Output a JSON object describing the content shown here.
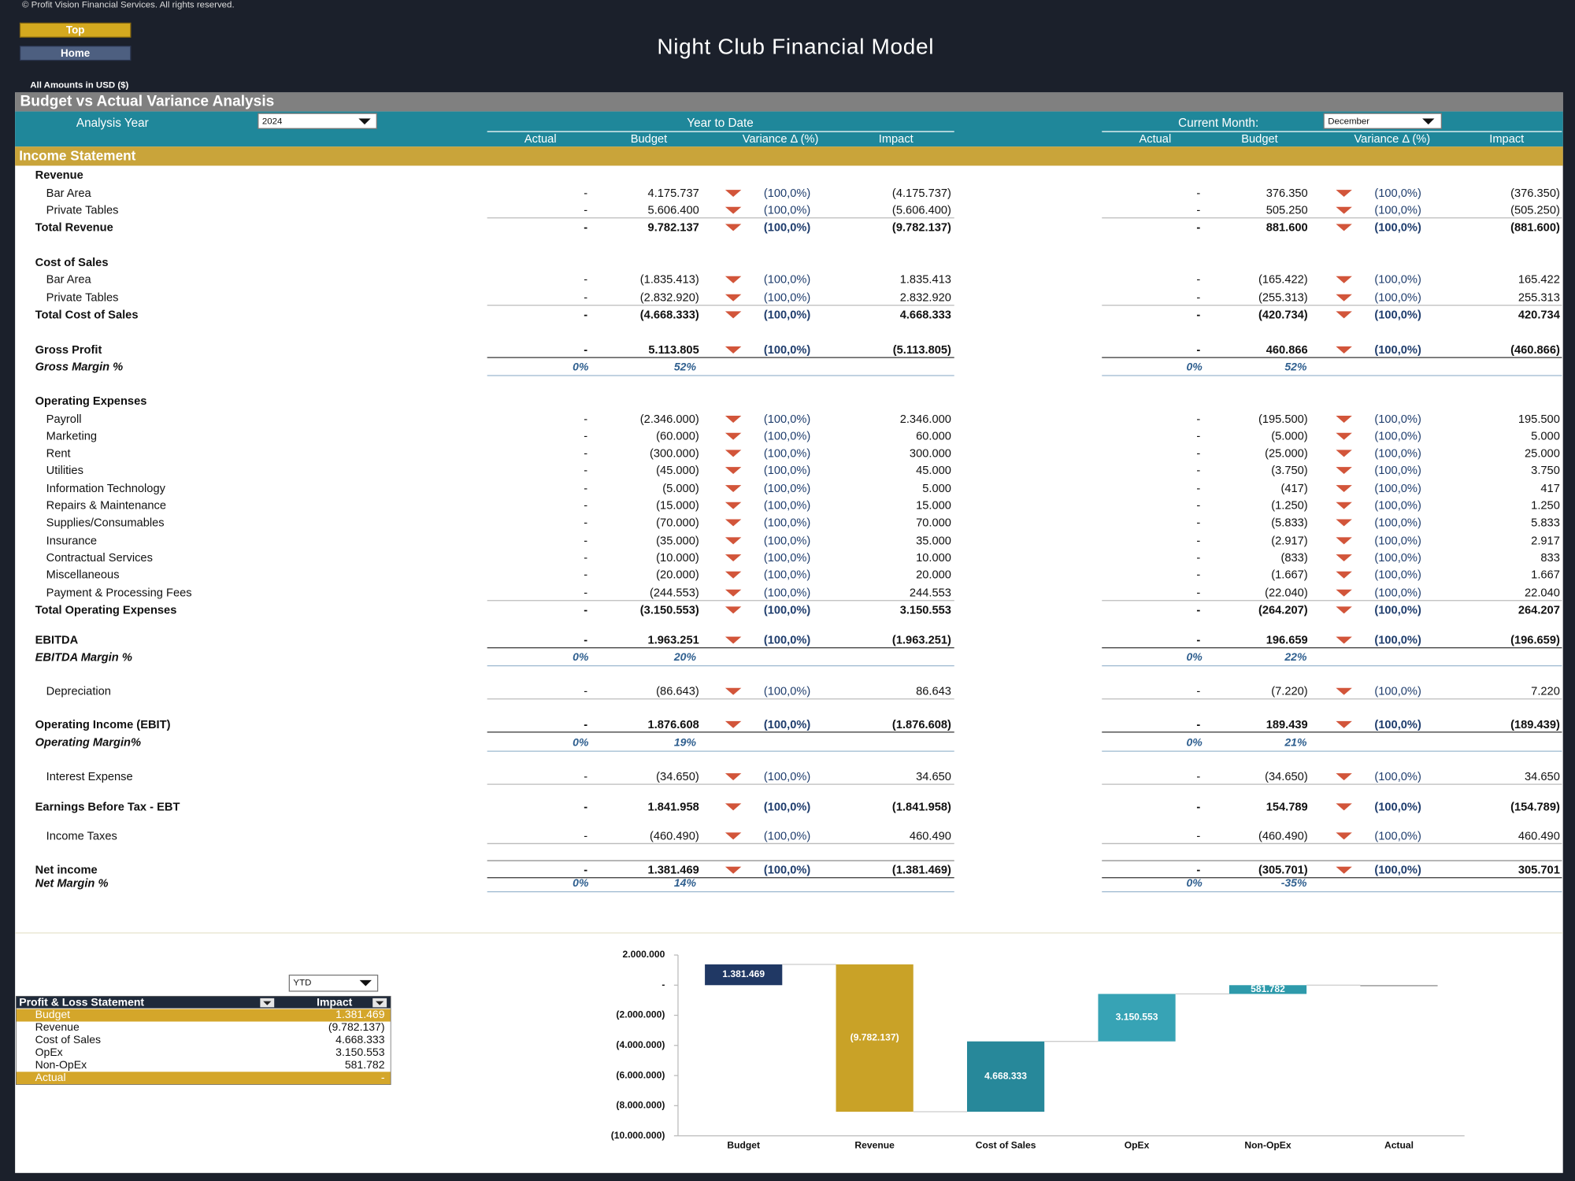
{
  "header": {
    "copyright": "© Profit Vision Financial Services. All rights reserved.",
    "buttons": [
      "Top",
      "Home"
    ],
    "title": "Night Club Financial Model",
    "amounts_note": "All Amounts in  USD ($)"
  },
  "report": {
    "title": "Budget vs Actual Variance Analysis",
    "year_label": "Analysis Year",
    "year": "2024",
    "ytd_label": "Year to Date",
    "month_label": "Current Month:",
    "month": "December",
    "columns": [
      "Actual",
      "Budget",
      "Variance Δ  (%)",
      "Impact"
    ],
    "section": "Income Statement",
    "rows": [
      {
        "label": "Revenue",
        "style": "header"
      },
      {
        "label": "Bar Area",
        "style": "item",
        "ytd": [
          "-",
          "4.175.737",
          "(100,0%)",
          "(4.175.737)"
        ],
        "month": [
          "-",
          "376.350",
          "(100,0%)",
          "(376.350)"
        ]
      },
      {
        "label": "Private Tables",
        "style": "item",
        "ytd": [
          "-",
          "5.606.400",
          "(100,0%)",
          "(5.606.400)"
        ],
        "month": [
          "-",
          "505.250",
          "(100,0%)",
          "(505.250)"
        ]
      },
      {
        "label": "Total Revenue",
        "style": "total",
        "ytd": [
          "-",
          "9.782.137",
          "(100,0%)",
          "(9.782.137)"
        ],
        "month": [
          "-",
          "881.600",
          "(100,0%)",
          "(881.600)"
        ]
      },
      {
        "label": "Cost of Sales",
        "style": "header"
      },
      {
        "label": "Bar Area",
        "style": "item",
        "ytd": [
          "-",
          "(1.835.413)",
          "(100,0%)",
          "1.835.413"
        ],
        "month": [
          "-",
          "(165.422)",
          "(100,0%)",
          "165.422"
        ]
      },
      {
        "label": "Private Tables",
        "style": "item",
        "ytd": [
          "-",
          "(2.832.920)",
          "(100,0%)",
          "2.832.920"
        ],
        "month": [
          "-",
          "(255.313)",
          "(100,0%)",
          "255.313"
        ]
      },
      {
        "label": "Total Cost of Sales",
        "style": "total",
        "ytd": [
          "-",
          "(4.668.333)",
          "(100,0%)",
          "4.668.333"
        ],
        "month": [
          "-",
          "(420.734)",
          "(100,0%)",
          "420.734"
        ]
      },
      {
        "label": "Gross Profit",
        "style": "total",
        "ytd": [
          "-",
          "5.113.805",
          "(100,0%)",
          "(5.113.805)"
        ],
        "month": [
          "-",
          "460.866",
          "(100,0%)",
          "(460.866)"
        ]
      },
      {
        "label": "Gross Margin %",
        "style": "margin",
        "ytd": [
          "0%",
          "52%"
        ],
        "month": [
          "0%",
          "52%"
        ]
      },
      {
        "label": "Operating Expenses",
        "style": "header"
      },
      {
        "label": "Payroll",
        "style": "item",
        "ytd": [
          "-",
          "(2.346.000)",
          "(100,0%)",
          "2.346.000"
        ],
        "month": [
          "-",
          "(195.500)",
          "(100,0%)",
          "195.500"
        ]
      },
      {
        "label": "Marketing",
        "style": "item",
        "ytd": [
          "-",
          "(60.000)",
          "(100,0%)",
          "60.000"
        ],
        "month": [
          "-",
          "(5.000)",
          "(100,0%)",
          "5.000"
        ]
      },
      {
        "label": "Rent",
        "style": "item",
        "ytd": [
          "-",
          "(300.000)",
          "(100,0%)",
          "300.000"
        ],
        "month": [
          "-",
          "(25.000)",
          "(100,0%)",
          "25.000"
        ]
      },
      {
        "label": "Utilities",
        "style": "item",
        "ytd": [
          "-",
          "(45.000)",
          "(100,0%)",
          "45.000"
        ],
        "month": [
          "-",
          "(3.750)",
          "(100,0%)",
          "3.750"
        ]
      },
      {
        "label": "Information Technology",
        "style": "item",
        "ytd": [
          "-",
          "(5.000)",
          "(100,0%)",
          "5.000"
        ],
        "month": [
          "-",
          "(417)",
          "(100,0%)",
          "417"
        ]
      },
      {
        "label": "Repairs & Maintenance",
        "style": "item",
        "ytd": [
          "-",
          "(15.000)",
          "(100,0%)",
          "15.000"
        ],
        "month": [
          "-",
          "(1.250)",
          "(100,0%)",
          "1.250"
        ]
      },
      {
        "label": "Supplies/Consumables",
        "style": "item",
        "ytd": [
          "-",
          "(70.000)",
          "(100,0%)",
          "70.000"
        ],
        "month": [
          "-",
          "(5.833)",
          "(100,0%)",
          "5.833"
        ]
      },
      {
        "label": "Insurance",
        "style": "item",
        "ytd": [
          "-",
          "(35.000)",
          "(100,0%)",
          "35.000"
        ],
        "month": [
          "-",
          "(2.917)",
          "(100,0%)",
          "2.917"
        ]
      },
      {
        "label": "Contractual Services",
        "style": "item",
        "ytd": [
          "-",
          "(10.000)",
          "(100,0%)",
          "10.000"
        ],
        "month": [
          "-",
          "(833)",
          "(100,0%)",
          "833"
        ]
      },
      {
        "label": "Miscellaneous",
        "style": "item",
        "ytd": [
          "-",
          "(20.000)",
          "(100,0%)",
          "20.000"
        ],
        "month": [
          "-",
          "(1.667)",
          "(100,0%)",
          "1.667"
        ]
      },
      {
        "label": "Payment & Processing Fees",
        "style": "item",
        "ytd": [
          "-",
          "(244.553)",
          "(100,0%)",
          "244.553"
        ],
        "month": [
          "-",
          "(22.040)",
          "(100,0%)",
          "22.040"
        ]
      },
      {
        "label": "Total Operating Expenses",
        "style": "total",
        "ytd": [
          "-",
          "(3.150.553)",
          "(100,0%)",
          "3.150.553"
        ],
        "month": [
          "-",
          "(264.207)",
          "(100,0%)",
          "264.207"
        ]
      },
      {
        "label": "EBITDA",
        "style": "total",
        "ytd": [
          "-",
          "1.963.251",
          "(100,0%)",
          "(1.963.251)"
        ],
        "month": [
          "-",
          "196.659",
          "(100,0%)",
          "(196.659)"
        ]
      },
      {
        "label": "EBITDA Margin %",
        "style": "margin",
        "ytd": [
          "0%",
          "20%"
        ],
        "month": [
          "0%",
          "22%"
        ]
      },
      {
        "label": "Depreciation",
        "style": "item",
        "ytd": [
          "-",
          "(86.643)",
          "(100,0%)",
          "86.643"
        ],
        "month": [
          "-",
          "(7.220)",
          "(100,0%)",
          "7.220"
        ]
      },
      {
        "label": "Operating Income (EBIT)",
        "style": "total",
        "ytd": [
          "-",
          "1.876.608",
          "(100,0%)",
          "(1.876.608)"
        ],
        "month": [
          "-",
          "189.439",
          "(100,0%)",
          "(189.439)"
        ]
      },
      {
        "label": "Operating Margin%",
        "style": "margin",
        "ytd": [
          "0%",
          "19%"
        ],
        "month": [
          "0%",
          "21%"
        ]
      },
      {
        "label": "Interest Expense",
        "style": "item",
        "ytd": [
          "-",
          "(34.650)",
          "(100,0%)",
          "34.650"
        ],
        "month": [
          "-",
          "(34.650)",
          "(100,0%)",
          "34.650"
        ]
      },
      {
        "label": "Earnings Before Tax - EBT",
        "style": "total",
        "ytd": [
          "-",
          "1.841.958",
          "(100,0%)",
          "(1.841.958)"
        ],
        "month": [
          "-",
          "154.789",
          "(100,0%)",
          "(154.789)"
        ]
      },
      {
        "label": "Income Taxes",
        "style": "item",
        "ytd": [
          "-",
          "(460.490)",
          "(100,0%)",
          "460.490"
        ],
        "month": [
          "-",
          "(460.490)",
          "(100,0%)",
          "460.490"
        ]
      },
      {
        "label": "Net income",
        "style": "total",
        "ytd": [
          "-",
          "1.381.469",
          "(100,0%)",
          "(1.381.469)"
        ],
        "month": [
          "-",
          "(305.701)",
          "(100,0%)",
          "305.701"
        ]
      },
      {
        "label": "Net Margin %",
        "style": "margin",
        "ytd": [
          "0%",
          "14%"
        ],
        "month": [
          "0%",
          "-35%"
        ]
      }
    ]
  },
  "pnl_table": {
    "filter": "YTD",
    "header": [
      "Profit & Loss Statement",
      "Impact"
    ],
    "rows": [
      [
        "Budget",
        "1.381.469"
      ],
      [
        "Revenue",
        "(9.782.137)"
      ],
      [
        "Cost of Sales",
        "4.668.333"
      ],
      [
        "OpEx",
        "3.150.553"
      ],
      [
        "Non-OpEx",
        "581.782"
      ],
      [
        "Actual",
        "-"
      ]
    ]
  },
  "chart_data": {
    "type": "waterfall",
    "categories": [
      "Budget",
      "Revenue",
      "Cost of Sales",
      "OpEx",
      "Non-OpEx",
      "Actual"
    ],
    "values": [
      1381469,
      -9782137,
      4668333,
      3150553,
      581782,
      0
    ],
    "value_labels": [
      "1.381.469",
      "(9.782.137)",
      "4.668.333",
      "3.150.553",
      "581.782",
      null
    ],
    "colors": [
      "#203864",
      "#c9a227",
      "#27889a",
      "#37a3b5",
      "#2e9aab",
      "#8a8a8a"
    ],
    "ylim": [
      -10000000,
      2000000
    ],
    "yticks": [
      {
        "value": 2000000,
        "label": "2.000.000"
      },
      {
        "value": 0,
        "label": "-"
      },
      {
        "value": -2000000,
        "label": "(2.000.000)"
      },
      {
        "value": -4000000,
        "label": "(4.000.000)"
      },
      {
        "value": -6000000,
        "label": "(6.000.000)"
      },
      {
        "value": -8000000,
        "label": "(8.000.000)"
      },
      {
        "value": -10000000,
        "label": "(10.000.000)"
      }
    ]
  }
}
